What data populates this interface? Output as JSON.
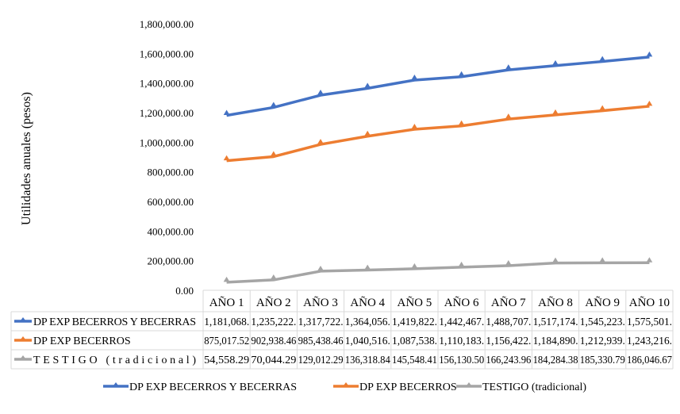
{
  "chart_data": {
    "type": "line",
    "title": "",
    "xlabel": "",
    "ylabel": "Utilidades anuales (pesos)",
    "ylim": [
      0,
      1800000
    ],
    "yticks": [
      "0.00",
      "200,000.00",
      "400,000.00",
      "600,000.00",
      "800,000.00",
      "1,000,000.00",
      "1,200,000.00",
      "1,400,000.00",
      "1,600,000.00",
      "1,800,000.00"
    ],
    "categories": [
      "AÑO 1",
      "AÑO 2",
      "AÑO 3",
      "AÑO 4",
      "AÑO 5",
      "AÑO 6",
      "AÑO 7",
      "AÑO 8",
      "AÑO 9",
      "AÑO 10"
    ],
    "grid": false,
    "legend_placement": "bottom",
    "data_table": true,
    "series": [
      {
        "name": "DP EXP BECERROS Y BECERRAS",
        "color": "#4472C4",
        "values": [
          1181068,
          1235222,
          1317722,
          1364056,
          1419822,
          1442467,
          1488707,
          1517174,
          1545223,
          1575501
        ],
        "labels": [
          "1,181,068.",
          "1,235,222.",
          "1,317,722.",
          "1,364,056.",
          "1,419,822.",
          "1,442,467.",
          "1,488,707.",
          "1,517,174.",
          "1,545,223.",
          "1,575,501."
        ]
      },
      {
        "name": "DP EXP BECERROS",
        "color": "#ED7D31",
        "values": [
          875017.52,
          902938.46,
          985438.46,
          1040516,
          1087538,
          1110183,
          1156422,
          1184890,
          1212939,
          1243216
        ],
        "labels": [
          "875,017.52",
          "902,938.46",
          "985,438.46",
          "1,040,516.",
          "1,087,538.",
          "1,110,183.",
          "1,156,422.",
          "1,184,890.",
          "1,212,939.",
          "1,243,216."
        ]
      },
      {
        "name": "TESTIGO (tradicional)",
        "color": "#A5A5A5",
        "values": [
          54558.29,
          70044.29,
          129012.29,
          136318.84,
          145548.41,
          156130.5,
          166243.96,
          184284.38,
          185330.79,
          186046.67
        ],
        "labels": [
          "54,558.29",
          "70,044.29",
          "129,012.29",
          "136,318.84",
          "145,548.41",
          "156,130.50",
          "166,243.96",
          "184,284.38",
          "185,330.79",
          "186,046.67"
        ]
      }
    ]
  }
}
